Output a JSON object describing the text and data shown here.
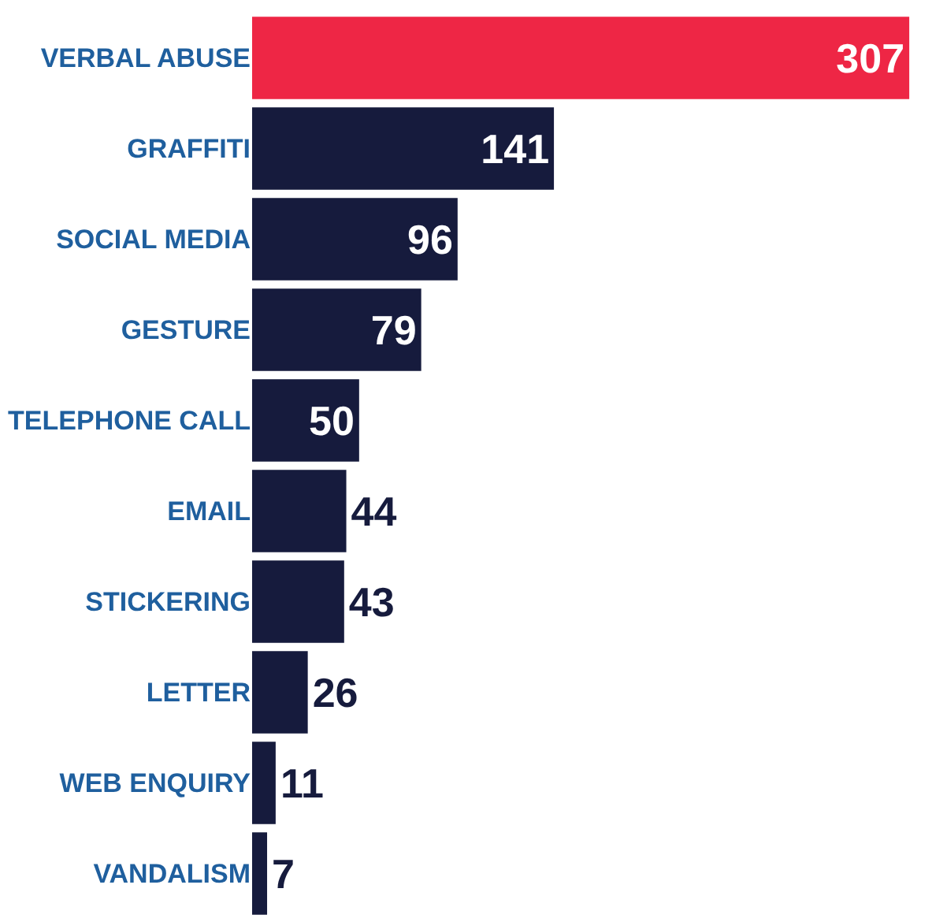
{
  "chart_data": {
    "type": "bar",
    "orientation": "horizontal",
    "categories": [
      "VERBAL ABUSE",
      "GRAFFITI",
      "SOCIAL MEDIA",
      "GESTURE",
      "TELEPHONE CALL",
      "EMAIL",
      "STICKERING",
      "LETTER",
      "WEB ENQUIRY",
      "VANDALISM"
    ],
    "values": [
      307,
      141,
      96,
      79,
      50,
      44,
      43,
      26,
      11,
      7
    ],
    "colors": [
      "#ee2645",
      "#161b3d",
      "#161b3d",
      "#161b3d",
      "#161b3d",
      "#161b3d",
      "#161b3d",
      "#161b3d",
      "#161b3d",
      "#161b3d"
    ],
    "data_labels": true
  }
}
